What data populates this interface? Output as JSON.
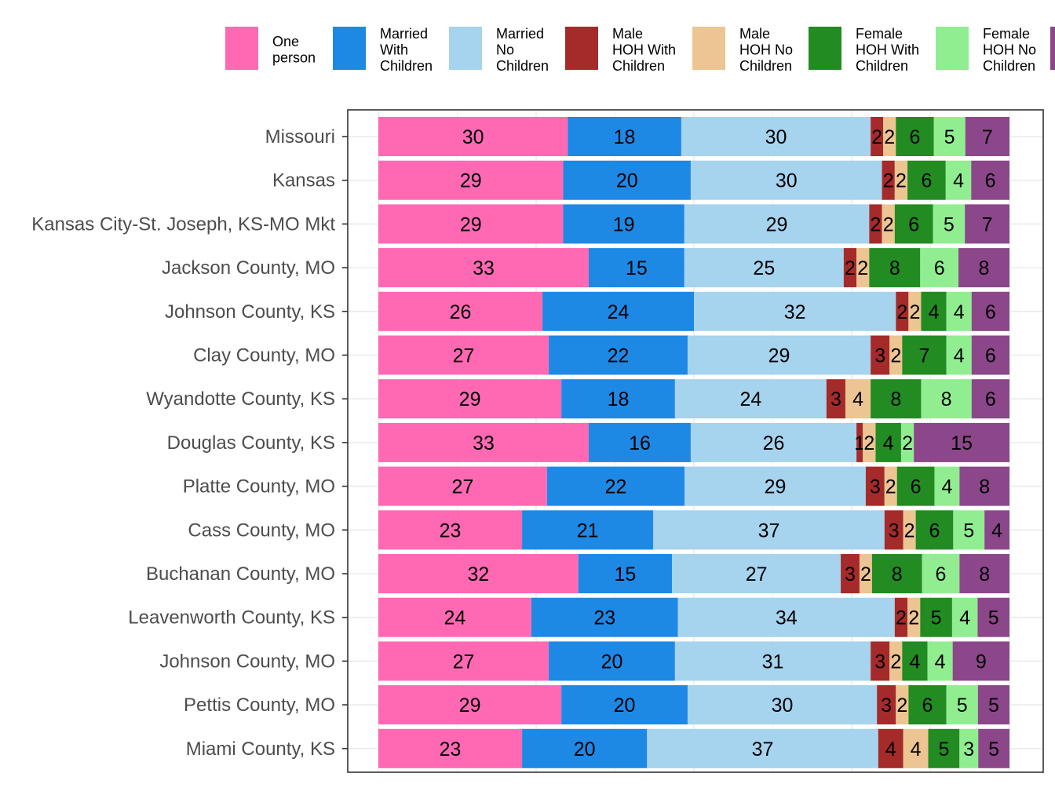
{
  "chart_data": {
    "type": "bar",
    "orientation": "horizontal",
    "stacked": true,
    "normalized_percent": true,
    "grid": true,
    "legend_position": "top",
    "xlim": [
      0,
      100
    ],
    "categories": [
      "Missouri",
      "Kansas",
      "Kansas City-St. Joseph, KS-MO Mkt",
      "Jackson County, MO",
      "Johnson County, KS",
      "Clay County, MO",
      "Wyandotte County, KS",
      "Douglas County, KS",
      "Platte County, MO",
      "Cass County, MO",
      "Buchanan County, MO",
      "Leavenworth County, KS",
      "Johnson County, MO",
      "Pettis County, MO",
      "Miami County, KS"
    ],
    "series": [
      {
        "name": "One person",
        "legend_lines": [
          "One",
          "person"
        ],
        "color": "#FF69B4",
        "values": [
          30,
          29,
          29,
          33,
          26,
          27,
          29,
          33,
          27,
          23,
          32,
          24,
          27,
          29,
          23
        ]
      },
      {
        "name": "Married With Children",
        "legend_lines": [
          "Married",
          "With",
          "Children"
        ],
        "color": "#1E88E5",
        "values": [
          18,
          20,
          19,
          15,
          24,
          22,
          18,
          16,
          22,
          21,
          15,
          23,
          20,
          20,
          20
        ]
      },
      {
        "name": "Married No Children",
        "legend_lines": [
          "Married",
          "No",
          "Children"
        ],
        "color": "#A6D3EE",
        "values": [
          30,
          30,
          29,
          25,
          32,
          29,
          24,
          26,
          29,
          37,
          27,
          34,
          31,
          30,
          37
        ]
      },
      {
        "name": "Male HOH With Children",
        "legend_lines": [
          "Male",
          "HOH With",
          "Children"
        ],
        "color": "#A52A2A",
        "values": [
          2,
          2,
          2,
          2,
          2,
          3,
          3,
          1,
          3,
          3,
          3,
          2,
          3,
          3,
          4
        ]
      },
      {
        "name": "Male HOH No Children",
        "legend_lines": [
          "Male",
          "HOH No",
          "Children"
        ],
        "color": "#EDC592",
        "values": [
          2,
          2,
          2,
          2,
          2,
          2,
          4,
          2,
          2,
          2,
          2,
          2,
          2,
          2,
          4
        ]
      },
      {
        "name": "Female HOH With Children",
        "legend_lines": [
          "Female",
          "HOH With",
          "Children"
        ],
        "color": "#228B22",
        "values": [
          6,
          6,
          6,
          8,
          4,
          7,
          8,
          4,
          6,
          6,
          8,
          5,
          4,
          6,
          5
        ]
      },
      {
        "name": "Female HOH No Children",
        "legend_lines": [
          "Female",
          "HOH No",
          "Children"
        ],
        "color": "#90EE90",
        "values": [
          5,
          4,
          5,
          6,
          4,
          4,
          8,
          2,
          4,
          5,
          6,
          4,
          4,
          5,
          3
        ]
      },
      {
        "name": "",
        "legend_lines": [],
        "color": "#8B4789",
        "values": [
          7,
          6,
          7,
          8,
          6,
          6,
          6,
          15,
          8,
          4,
          8,
          5,
          9,
          5,
          5
        ]
      }
    ]
  }
}
